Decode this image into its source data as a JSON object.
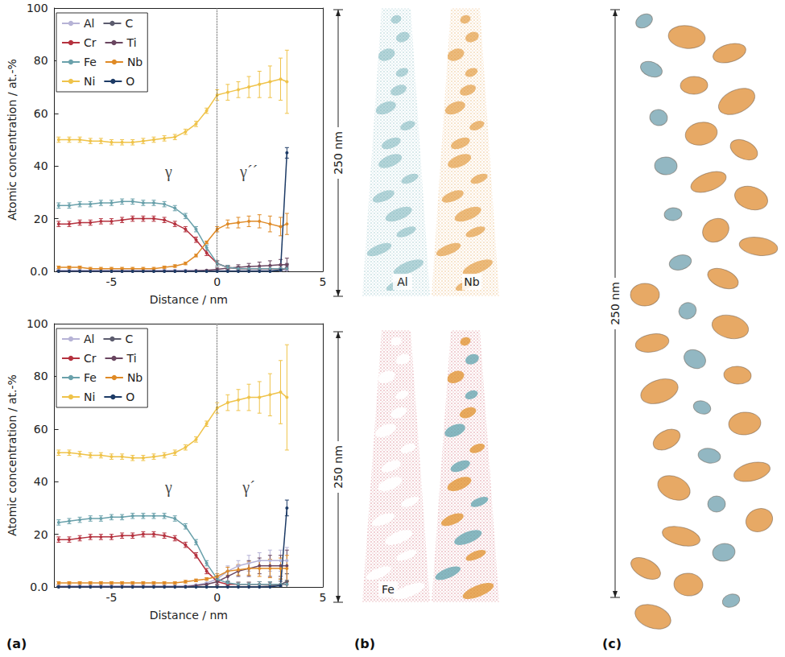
{
  "chart_data": [
    {
      "type": "line",
      "x_label": "Distance / nm",
      "y_label": "Atomic concentration / at.-%",
      "xlim": [
        -7.7,
        5
      ],
      "xticks": [
        -5,
        0,
        5
      ],
      "ylim": [
        0,
        100
      ],
      "yticks": [
        {
          "value": 0,
          "label": "0.0"
        },
        20,
        40,
        60,
        80,
        100
      ],
      "grid": false,
      "legend": "upper left",
      "marker": "circle",
      "line_style": "solid",
      "interface_x": 0,
      "annotations": [
        {
          "text": "γ",
          "x": -2.3,
          "y": 38
        },
        {
          "text": "γ´´",
          "x": 1.5,
          "y": 38
        }
      ],
      "x": [
        -7.5,
        -7,
        -6.5,
        -6,
        -5.5,
        -5,
        -4.5,
        -4,
        -3.5,
        -3,
        -2.5,
        -2,
        -1.5,
        -1,
        -0.5,
        0,
        0.5,
        1,
        1.5,
        2,
        2.5,
        3,
        3.3
      ],
      "series": [
        {
          "name": "Al",
          "color": "#b6b3d6",
          "values": [
            0.4,
            0.4,
            0.4,
            0.4,
            0.4,
            0.4,
            0.4,
            0.4,
            0.4,
            0.4,
            0.4,
            0.4,
            0.4,
            0.3,
            0.3,
            0.2,
            0.2,
            0.2,
            0.2,
            0.3,
            0.3,
            0.4,
            0.5
          ],
          "errors": [
            0.2,
            0.2,
            0.2,
            0.2,
            0.2,
            0.2,
            0.2,
            0.2,
            0.2,
            0.2,
            0.2,
            0.2,
            0.2,
            0.2,
            0.2,
            0.3,
            0.4,
            0.5,
            0.6,
            0.7,
            0.8,
            1,
            1.5
          ]
        },
        {
          "name": "C",
          "color": "#5c5c6e",
          "values": [
            0.1,
            0.1,
            0.1,
            0.1,
            0.1,
            0.1,
            0.1,
            0.1,
            0.1,
            0.1,
            0.1,
            0.1,
            0.1,
            0.1,
            0.1,
            0.1,
            0.1,
            0.1,
            0.1,
            0.1,
            0.1,
            0.3,
            1.5
          ],
          "errors": [
            0.1,
            0.1,
            0.1,
            0.1,
            0.1,
            0.1,
            0.1,
            0.1,
            0.1,
            0.1,
            0.1,
            0.1,
            0.1,
            0.1,
            0.1,
            0.2,
            0.3,
            0.3,
            0.4,
            0.5,
            0.6,
            0.8,
            1.5
          ]
        },
        {
          "name": "Cr",
          "color": "#b5323f",
          "values": [
            18,
            18,
            18.5,
            18.5,
            19,
            19,
            19.5,
            20,
            20,
            20,
            19.5,
            18,
            16,
            12,
            7,
            3,
            1.5,
            1,
            1,
            1,
            1,
            1,
            1
          ],
          "errors": [
            1,
            1,
            1,
            1,
            1,
            1,
            1,
            1,
            1,
            1,
            1,
            1,
            1,
            1,
            1,
            1,
            0.8,
            0.8,
            0.8,
            1,
            1,
            1.2,
            1.5
          ]
        },
        {
          "name": "Ti",
          "color": "#6a4660",
          "values": [
            0.1,
            0.1,
            0.1,
            0.1,
            0.1,
            0.1,
            0.1,
            0.1,
            0.1,
            0.1,
            0.1,
            0.1,
            0.1,
            0.2,
            0.4,
            0.8,
            1.2,
            1.5,
            1.8,
            2,
            2.2,
            2.5,
            2.5
          ],
          "errors": [
            0.1,
            0.1,
            0.1,
            0.1,
            0.1,
            0.1,
            0.1,
            0.1,
            0.1,
            0.1,
            0.1,
            0.1,
            0.1,
            0.1,
            0.1,
            0.5,
            0.8,
            1,
            1.2,
            1.5,
            1.8,
            2,
            2.5
          ]
        },
        {
          "name": "Fe",
          "color": "#6aa1ab",
          "values": [
            25,
            25,
            25.5,
            25.5,
            26,
            26,
            26.5,
            26.5,
            26,
            26,
            25.5,
            24,
            21,
            16,
            9,
            3,
            1.5,
            1,
            1,
            1,
            1,
            1,
            1
          ],
          "errors": [
            1,
            1,
            1,
            1,
            1,
            1,
            1,
            1,
            1,
            1,
            1,
            1,
            1,
            1,
            1,
            1,
            0.8,
            0.8,
            0.8,
            1,
            1,
            1.2,
            1.5
          ]
        },
        {
          "name": "Nb",
          "color": "#df8a26",
          "values": [
            1.5,
            1.5,
            1.5,
            1,
            1,
            1,
            1,
            1,
            1,
            1,
            1.5,
            2,
            3,
            6,
            11,
            16,
            18,
            18.5,
            19,
            19,
            18,
            17,
            18
          ],
          "errors": [
            0.5,
            0.5,
            0.5,
            0.5,
            0.5,
            0.5,
            0.5,
            0.5,
            0.5,
            0.5,
            0.5,
            0.5,
            0.5,
            0.5,
            0.5,
            1,
            1.5,
            2,
            2,
            2.5,
            3,
            3.5,
            4
          ]
        },
        {
          "name": "Ni",
          "color": "#efc34a",
          "values": [
            50,
            50,
            50,
            49.5,
            49.5,
            49,
            49,
            49,
            49.5,
            50,
            50.5,
            51,
            53,
            56,
            61,
            67,
            68,
            69,
            70,
            71,
            72,
            73,
            72
          ],
          "errors": [
            1,
            1,
            1,
            1,
            1,
            1,
            1,
            1,
            1,
            1,
            1,
            1,
            1,
            1,
            1,
            2,
            3,
            3,
            4,
            5,
            6,
            8,
            12
          ]
        },
        {
          "name": "O",
          "color": "#1d3b66",
          "values": [
            0,
            0,
            0,
            0,
            0,
            0,
            0,
            0,
            0,
            0,
            0,
            0,
            0,
            0,
            0,
            0,
            0,
            0,
            0,
            0,
            0,
            0.5,
            45
          ],
          "errors": [
            0,
            0,
            0,
            0,
            0,
            0,
            0,
            0,
            0,
            0,
            0,
            0,
            0,
            0,
            0,
            0,
            0,
            0,
            0,
            0,
            0,
            0.5,
            2
          ]
        }
      ]
    },
    {
      "type": "line",
      "x_label": "Distance / nm",
      "y_label": "Atomic concentration / at.-%",
      "xlim": [
        -7.7,
        5
      ],
      "xticks": [
        -5,
        0,
        5
      ],
      "ylim": [
        0,
        100
      ],
      "yticks": [
        {
          "value": 0,
          "label": "0.0"
        },
        20,
        40,
        60,
        80,
        100
      ],
      "grid": false,
      "legend": "upper left",
      "marker": "circle",
      "line_style": "solid",
      "interface_x": 0,
      "annotations": [
        {
          "text": "γ",
          "x": -2.3,
          "y": 38
        },
        {
          "text": "γ´",
          "x": 1.5,
          "y": 38
        }
      ],
      "x": [
        -7.5,
        -7,
        -6.5,
        -6,
        -5.5,
        -5,
        -4.5,
        -4,
        -3.5,
        -3,
        -2.5,
        -2,
        -1.5,
        -1,
        -0.5,
        0,
        0.5,
        1,
        1.5,
        2,
        2.5,
        3,
        3.3
      ],
      "series": [
        {
          "name": "Al",
          "color": "#b6b3d6",
          "values": [
            0.4,
            0.4,
            0.4,
            0.4,
            0.4,
            0.4,
            0.4,
            0.4,
            0.4,
            0.4,
            0.4,
            0.4,
            0.4,
            0.8,
            1.5,
            3,
            6,
            8,
            9,
            10,
            10,
            10,
            10
          ],
          "errors": [
            0.2,
            0.2,
            0.2,
            0.2,
            0.2,
            0.2,
            0.2,
            0.2,
            0.2,
            0.2,
            0.2,
            0.2,
            0.2,
            0.2,
            0.2,
            1,
            2,
            2,
            3,
            3,
            4,
            4,
            5
          ]
        },
        {
          "name": "C",
          "color": "#5c5c6e",
          "values": [
            0.1,
            0.1,
            0.1,
            0.1,
            0.1,
            0.1,
            0.1,
            0.1,
            0.1,
            0.1,
            0.1,
            0.1,
            0.1,
            0.1,
            0.1,
            0.1,
            0.1,
            0.1,
            0.1,
            0.1,
            0.3,
            1,
            2
          ],
          "errors": [
            0.1,
            0.1,
            0.1,
            0.1,
            0.1,
            0.1,
            0.1,
            0.1,
            0.1,
            0.1,
            0.1,
            0.1,
            0.1,
            0.1,
            0.1,
            0.3,
            0.5,
            0.8,
            1,
            1,
            1.5,
            2,
            3
          ]
        },
        {
          "name": "Cr",
          "color": "#b5323f",
          "values": [
            18,
            18,
            18.5,
            19,
            19,
            19,
            19.5,
            19.5,
            20,
            20,
            19.5,
            18.5,
            16,
            12,
            6,
            2,
            1,
            1,
            1,
            1,
            1,
            1,
            1
          ],
          "errors": [
            1,
            1,
            1,
            1,
            1,
            1,
            1,
            1,
            1,
            1,
            1,
            1,
            1,
            1,
            1,
            1,
            0.8,
            0.8,
            0.8,
            1,
            1,
            1.2,
            1.5
          ]
        },
        {
          "name": "Ti",
          "color": "#6a4660",
          "values": [
            0.1,
            0.1,
            0.1,
            0.1,
            0.1,
            0.1,
            0.1,
            0.1,
            0.1,
            0.1,
            0.1,
            0.1,
            0.1,
            0.5,
            1,
            2,
            4,
            6,
            7,
            8,
            8,
            8,
            8
          ],
          "errors": [
            0.1,
            0.1,
            0.1,
            0.1,
            0.1,
            0.1,
            0.1,
            0.1,
            0.1,
            0.1,
            0.1,
            0.1,
            0.1,
            0.1,
            0.1,
            1,
            2,
            2,
            3,
            3,
            4,
            4,
            6
          ]
        },
        {
          "name": "Fe",
          "color": "#6aa1ab",
          "values": [
            24.5,
            25,
            25.5,
            26,
            26,
            26.5,
            26.5,
            27,
            27,
            27,
            27,
            26,
            23,
            17,
            9,
            3,
            1.5,
            1,
            1,
            1,
            1,
            1,
            1
          ],
          "errors": [
            1,
            1,
            1,
            1,
            1,
            1,
            1,
            1,
            1,
            1,
            1,
            1,
            1,
            1,
            1,
            1,
            0.8,
            0.8,
            0.8,
            1,
            1,
            1.2,
            1.5
          ]
        },
        {
          "name": "Nb",
          "color": "#df8a26",
          "values": [
            1.5,
            1.5,
            1.5,
            1.5,
            1.5,
            1.5,
            1.5,
            1.5,
            1.5,
            1.5,
            1.5,
            1.5,
            2,
            2.5,
            3,
            4,
            6,
            6.5,
            7,
            7,
            7,
            7,
            7
          ],
          "errors": [
            0.5,
            0.5,
            0.5,
            0.5,
            0.5,
            0.5,
            0.5,
            0.5,
            0.5,
            0.5,
            0.5,
            0.5,
            0.5,
            0.5,
            0.5,
            1,
            1.5,
            2,
            2.5,
            3,
            3.5,
            4,
            5
          ]
        },
        {
          "name": "Ni",
          "color": "#efc34a",
          "values": [
            51,
            51,
            50.5,
            50,
            50,
            49.5,
            49.5,
            49,
            49,
            49.5,
            50,
            51,
            53,
            56,
            62,
            68,
            70,
            71,
            72,
            72,
            73,
            74,
            72
          ],
          "errors": [
            1,
            1,
            1,
            1,
            1,
            1,
            1,
            1,
            1,
            1,
            1,
            1,
            1,
            1,
            1,
            2,
            3,
            4,
            5,
            6,
            8,
            12,
            20
          ]
        },
        {
          "name": "O",
          "color": "#1d3b66",
          "values": [
            0,
            0,
            0,
            0,
            0,
            0,
            0,
            0,
            0,
            0,
            0,
            0,
            0,
            0,
            0,
            0,
            0,
            0,
            0,
            0,
            0,
            0.5,
            30
          ],
          "errors": [
            0,
            0,
            0,
            0,
            0,
            0,
            0,
            0,
            0,
            0,
            0,
            0,
            0,
            0,
            0,
            0,
            0,
            0,
            0,
            0,
            0,
            0.5,
            3
          ]
        }
      ]
    }
  ],
  "figure": {
    "panel_labels": [
      "(a)",
      "(b)",
      "(c)"
    ],
    "reconstructions": {
      "scale_bar": "250 nm",
      "maps": [
        {
          "label": "Al",
          "color": "#5fa3ae"
        },
        {
          "label": "Nb",
          "color": "#e0902a"
        },
        {
          "label": "Fe",
          "color": "#c0394b"
        }
      ]
    },
    "isosurfaces": {
      "scale_bar": "250 nm",
      "colors": [
        "#e39a4a",
        "#7faab7"
      ]
    }
  }
}
